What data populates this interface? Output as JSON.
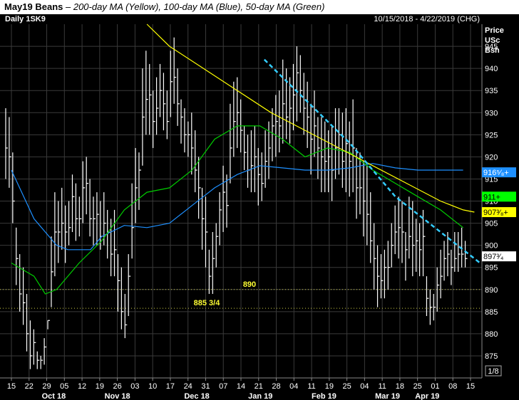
{
  "title": {
    "bold": "May19 Beans",
    "rest": " – 200-day MA (Yellow), 100-day MA (Blue), 50-day MA (Green)"
  },
  "header": {
    "symbol_label": "Daily 1SK9",
    "date_range": "10/15/2018 - 4/22/2019 (CHG)",
    "price_unit_lines": [
      "Price",
      "USc",
      "Bsh"
    ]
  },
  "colors": {
    "background": "#000000",
    "grid": "#3a3a3a",
    "bars": "#ffffff",
    "ma200": "#ffff00",
    "ma100": "#1e90ff",
    "ma50": "#00cc00",
    "trendline": "#33ccff",
    "support": "#cccc44",
    "axis_text": "#ffffff"
  },
  "chart_data": {
    "type": "ohlc",
    "ylim": [
      870,
      950
    ],
    "yticks": [
      875,
      880,
      885,
      890,
      895,
      900,
      905,
      910,
      915,
      920,
      925,
      930,
      935,
      940,
      945
    ],
    "x_day_labels": [
      "15",
      "22",
      "29",
      "05",
      "12",
      "19",
      "26",
      "03",
      "10",
      "17",
      "24",
      "31",
      "07",
      "14",
      "21",
      "28",
      "04",
      "11",
      "19",
      "25",
      "04",
      "11",
      "18",
      "25",
      "01",
      "08",
      "15"
    ],
    "x_month_labels": [
      {
        "label": "Oct 18",
        "at": 2
      },
      {
        "label": "Nov 18",
        "at": 6
      },
      {
        "label": "Dec 18",
        "at": 11
      },
      {
        "label": "Jan 19",
        "at": 15
      },
      {
        "label": "Feb 19",
        "at": 19
      },
      {
        "label": "Mar 19",
        "at": 23
      },
      {
        "label": "Apr 19",
        "at": 25.5
      }
    ],
    "bars_high": [
      931,
      929,
      921,
      904,
      898,
      895,
      889,
      883,
      881,
      876,
      875,
      879,
      883,
      902,
      912,
      910,
      913,
      909,
      910,
      916,
      914,
      911,
      919,
      920,
      915,
      911,
      912,
      910,
      912,
      908,
      906,
      908,
      898,
      895,
      889,
      898,
      914,
      922,
      921,
      940,
      944,
      941,
      935,
      938,
      941,
      939,
      935,
      944,
      947,
      940,
      933,
      931,
      928,
      930,
      926,
      920,
      913,
      911,
      899,
      903,
      905,
      912,
      918,
      916,
      932,
      937,
      938,
      933,
      927,
      925,
      926,
      927,
      922,
      921,
      926,
      928,
      931,
      934,
      935,
      942,
      940,
      938,
      941,
      945,
      943,
      939,
      937,
      932,
      935,
      929,
      929,
      928,
      926,
      927,
      931,
      931,
      930,
      931,
      928,
      933,
      922,
      921,
      919,
      918,
      912,
      905,
      900,
      898,
      899,
      901,
      905,
      909,
      911,
      910,
      903,
      911,
      910,
      906,
      905,
      908,
      893,
      890,
      889,
      895,
      899,
      901,
      903,
      899,
      903,
      903,
      904,
      901
    ],
    "bars_low": [
      915,
      913,
      905,
      891,
      885,
      882,
      876,
      872,
      873,
      872,
      872,
      873,
      881,
      886,
      893,
      896,
      899,
      896,
      900,
      903,
      901,
      902,
      905,
      907,
      902,
      900,
      900,
      899,
      900,
      897,
      893,
      893,
      885,
      881,
      879,
      884,
      897,
      905,
      908,
      918,
      925,
      925,
      922,
      925,
      929,
      926,
      924,
      929,
      932,
      927,
      923,
      921,
      920,
      916,
      912,
      906,
      899,
      895,
      889,
      889,
      895,
      900,
      903,
      904,
      914,
      920,
      922,
      921,
      917,
      913,
      912,
      912,
      909,
      910,
      913,
      915,
      919,
      920,
      921,
      923,
      924,
      923,
      926,
      928,
      930,
      925,
      922,
      916,
      920,
      915,
      912,
      912,
      912,
      910,
      915,
      916,
      913,
      912,
      911,
      912,
      906,
      907,
      902,
      900,
      896,
      890,
      886,
      888,
      888,
      890,
      895,
      898,
      897,
      896,
      892,
      897,
      893,
      894,
      893,
      893,
      884,
      882,
      883,
      885,
      888,
      892,
      893,
      891,
      894,
      894,
      895,
      895
    ],
    "bars_close": [
      922,
      920,
      910,
      897,
      889,
      887,
      880,
      875,
      878,
      874,
      874,
      877,
      883,
      894,
      903,
      903,
      905,
      903,
      904,
      911,
      906,
      906,
      913,
      914,
      906,
      906,
      907,
      902,
      905,
      903,
      898,
      899,
      892,
      885,
      882,
      893,
      904,
      913,
      917,
      929,
      933,
      934,
      928,
      931,
      935,
      932,
      928,
      937,
      938,
      932,
      929,
      925,
      925,
      922,
      917,
      913,
      906,
      903,
      893,
      897,
      902,
      908,
      912,
      909,
      922,
      928,
      930,
      926,
      921,
      917,
      918,
      920,
      916,
      914,
      919,
      922,
      927,
      928,
      927,
      932,
      929,
      931,
      934,
      939,
      935,
      931,
      929,
      924,
      927,
      922,
      920,
      919,
      920,
      917,
      922,
      925,
      919,
      923,
      919,
      922,
      913,
      913,
      910,
      907,
      901,
      897,
      893,
      892,
      895,
      895,
      900,
      903,
      904,
      903,
      899,
      902,
      900,
      901,
      899,
      902,
      888,
      886,
      886,
      891,
      893,
      897,
      898,
      895,
      897,
      898,
      898,
      897
    ],
    "ma200": [
      [
        12,
        950
      ],
      [
        14,
        945
      ],
      [
        17,
        940
      ],
      [
        20,
        935
      ],
      [
        23,
        930
      ],
      [
        26,
        926
      ],
      [
        29,
        922
      ],
      [
        32,
        918
      ],
      [
        35,
        914
      ],
      [
        38,
        910
      ],
      [
        40,
        908
      ],
      [
        41,
        907.5
      ]
    ],
    "ma100": [
      [
        0,
        917
      ],
      [
        2,
        906
      ],
      [
        4,
        900
      ],
      [
        5,
        899
      ],
      [
        7,
        899
      ],
      [
        8,
        902
      ],
      [
        10,
        904.5
      ],
      [
        12,
        904
      ],
      [
        14,
        905
      ],
      [
        16,
        909
      ],
      [
        18,
        913
      ],
      [
        20,
        916
      ],
      [
        22,
        918
      ],
      [
        24,
        917.5
      ],
      [
        26,
        917
      ],
      [
        28,
        917
      ],
      [
        30,
        917.5
      ],
      [
        32,
        918.5
      ],
      [
        34,
        917.5
      ],
      [
        36,
        917
      ],
      [
        38,
        917
      ],
      [
        40,
        917
      ]
    ],
    "ma50": [
      [
        0,
        896
      ],
      [
        2,
        893
      ],
      [
        3,
        889
      ],
      [
        4,
        890
      ],
      [
        6,
        896
      ],
      [
        8,
        901
      ],
      [
        10,
        908
      ],
      [
        12,
        912
      ],
      [
        14,
        913
      ],
      [
        16,
        917
      ],
      [
        18,
        924
      ],
      [
        20,
        927
      ],
      [
        22,
        927
      ],
      [
        24,
        924
      ],
      [
        26,
        920
      ],
      [
        28,
        922
      ],
      [
        30,
        921
      ],
      [
        32,
        917
      ],
      [
        34,
        914
      ],
      [
        36,
        911
      ],
      [
        38,
        908
      ],
      [
        40,
        904
      ]
    ],
    "trendline": [
      [
        22.4,
        942
      ],
      [
        30,
        923
      ],
      [
        34,
        911
      ],
      [
        41.5,
        896
      ]
    ],
    "support_levels": [
      {
        "value": 890,
        "label": "890"
      },
      {
        "value": 885.75,
        "label": "885 3/4"
      }
    ],
    "price_badges": [
      {
        "value": 916.5,
        "text": "916⁵⁄₈+",
        "color": "#1e90ff",
        "text_color": "#ffffff"
      },
      {
        "value": 911,
        "text": "911+",
        "color": "#00ff00",
        "text_color": "#000000"
      },
      {
        "value": 907.5,
        "text": "907³⁄₈+",
        "color": "#ffff00",
        "text_color": "#000000"
      },
      {
        "value": 897.5,
        "text": "897³⁄₄",
        "color": "#ffffff",
        "text_color": "#000000"
      }
    ],
    "tick_fraction_label": "1/8"
  }
}
